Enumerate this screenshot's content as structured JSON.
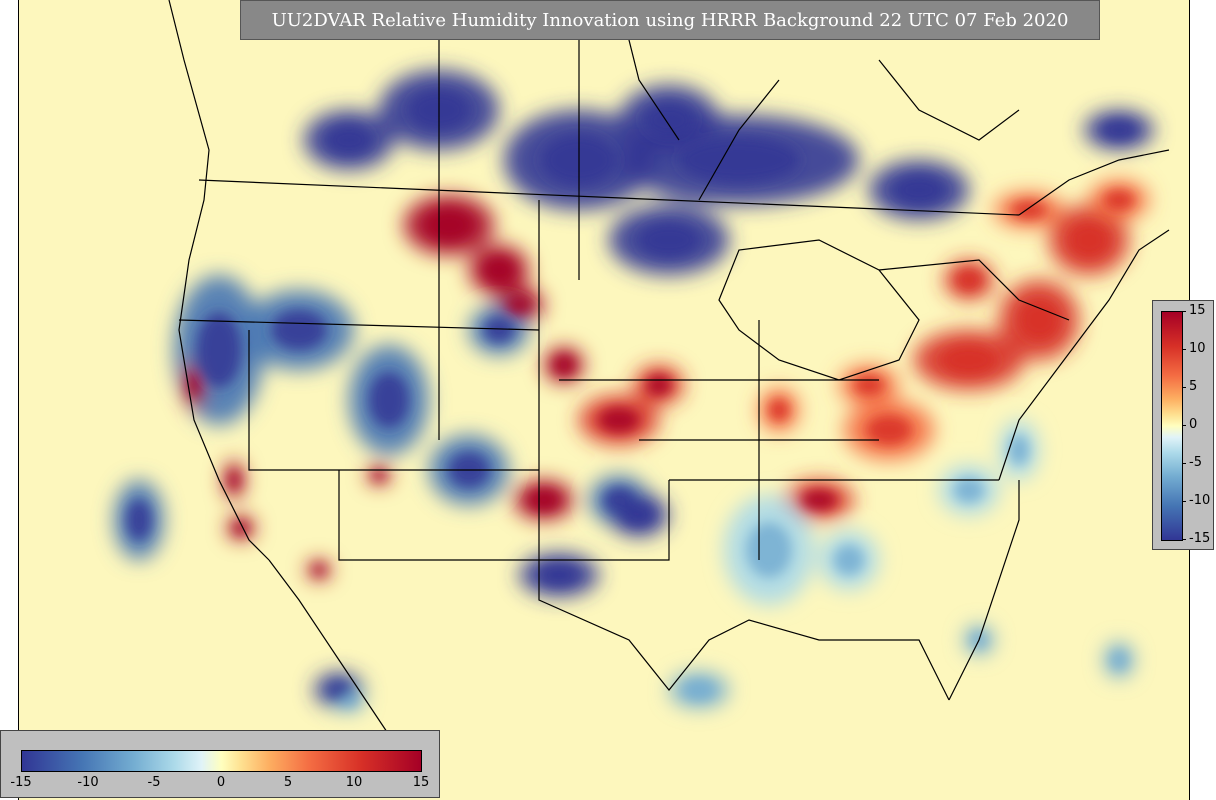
{
  "title": "UU2DVAR Relative Humidity Innovation using HRRR Background 22 UTC 07 Feb 2020",
  "colorbar_vertical": {
    "ticks": [
      "15",
      "10",
      "5",
      "0",
      "-5",
      "-10",
      "-15"
    ]
  },
  "colorbar_horizontal": {
    "ticks": [
      "-15",
      "-10",
      "-5",
      "0",
      "5",
      "10",
      "15"
    ]
  },
  "colormap": [
    "#313695",
    "#4575b4",
    "#74add1",
    "#abd9e9",
    "#e0f3f8",
    "#ffffbf",
    "#fee090",
    "#fdae61",
    "#f46d43",
    "#d73027",
    "#a50026"
  ],
  "value_range": [
    -15,
    15
  ],
  "map_regions": [
    {
      "id": "northern-plains-dry",
      "sign": "negative",
      "value": -14
    },
    {
      "id": "hudson-bay-dry",
      "sign": "negative",
      "value": -15
    },
    {
      "id": "montana-moist",
      "sign": "positive",
      "value": 15
    },
    {
      "id": "great-basin-dry",
      "sign": "negative",
      "value": -13
    },
    {
      "id": "rockies-dry",
      "sign": "negative",
      "value": -12
    },
    {
      "id": "west-texas-dry",
      "sign": "negative",
      "value": -15
    },
    {
      "id": "oklahoma-moist",
      "sign": "positive",
      "value": 14
    },
    {
      "id": "kansas-moist",
      "sign": "positive",
      "value": 13
    },
    {
      "id": "ohio-valley-moist",
      "sign": "positive",
      "value": 10
    },
    {
      "id": "northeast-moist",
      "sign": "positive",
      "value": 11
    },
    {
      "id": "quebec-moist",
      "sign": "positive",
      "value": 9
    },
    {
      "id": "southeast-mixed-dry",
      "sign": "negative",
      "value": -6
    },
    {
      "id": "california-central-moist",
      "sign": "positive",
      "value": 14
    },
    {
      "id": "socal-coast-moist",
      "sign": "positive",
      "value": 15
    },
    {
      "id": "gulf-dry-patches",
      "sign": "negative",
      "value": -8
    }
  ]
}
